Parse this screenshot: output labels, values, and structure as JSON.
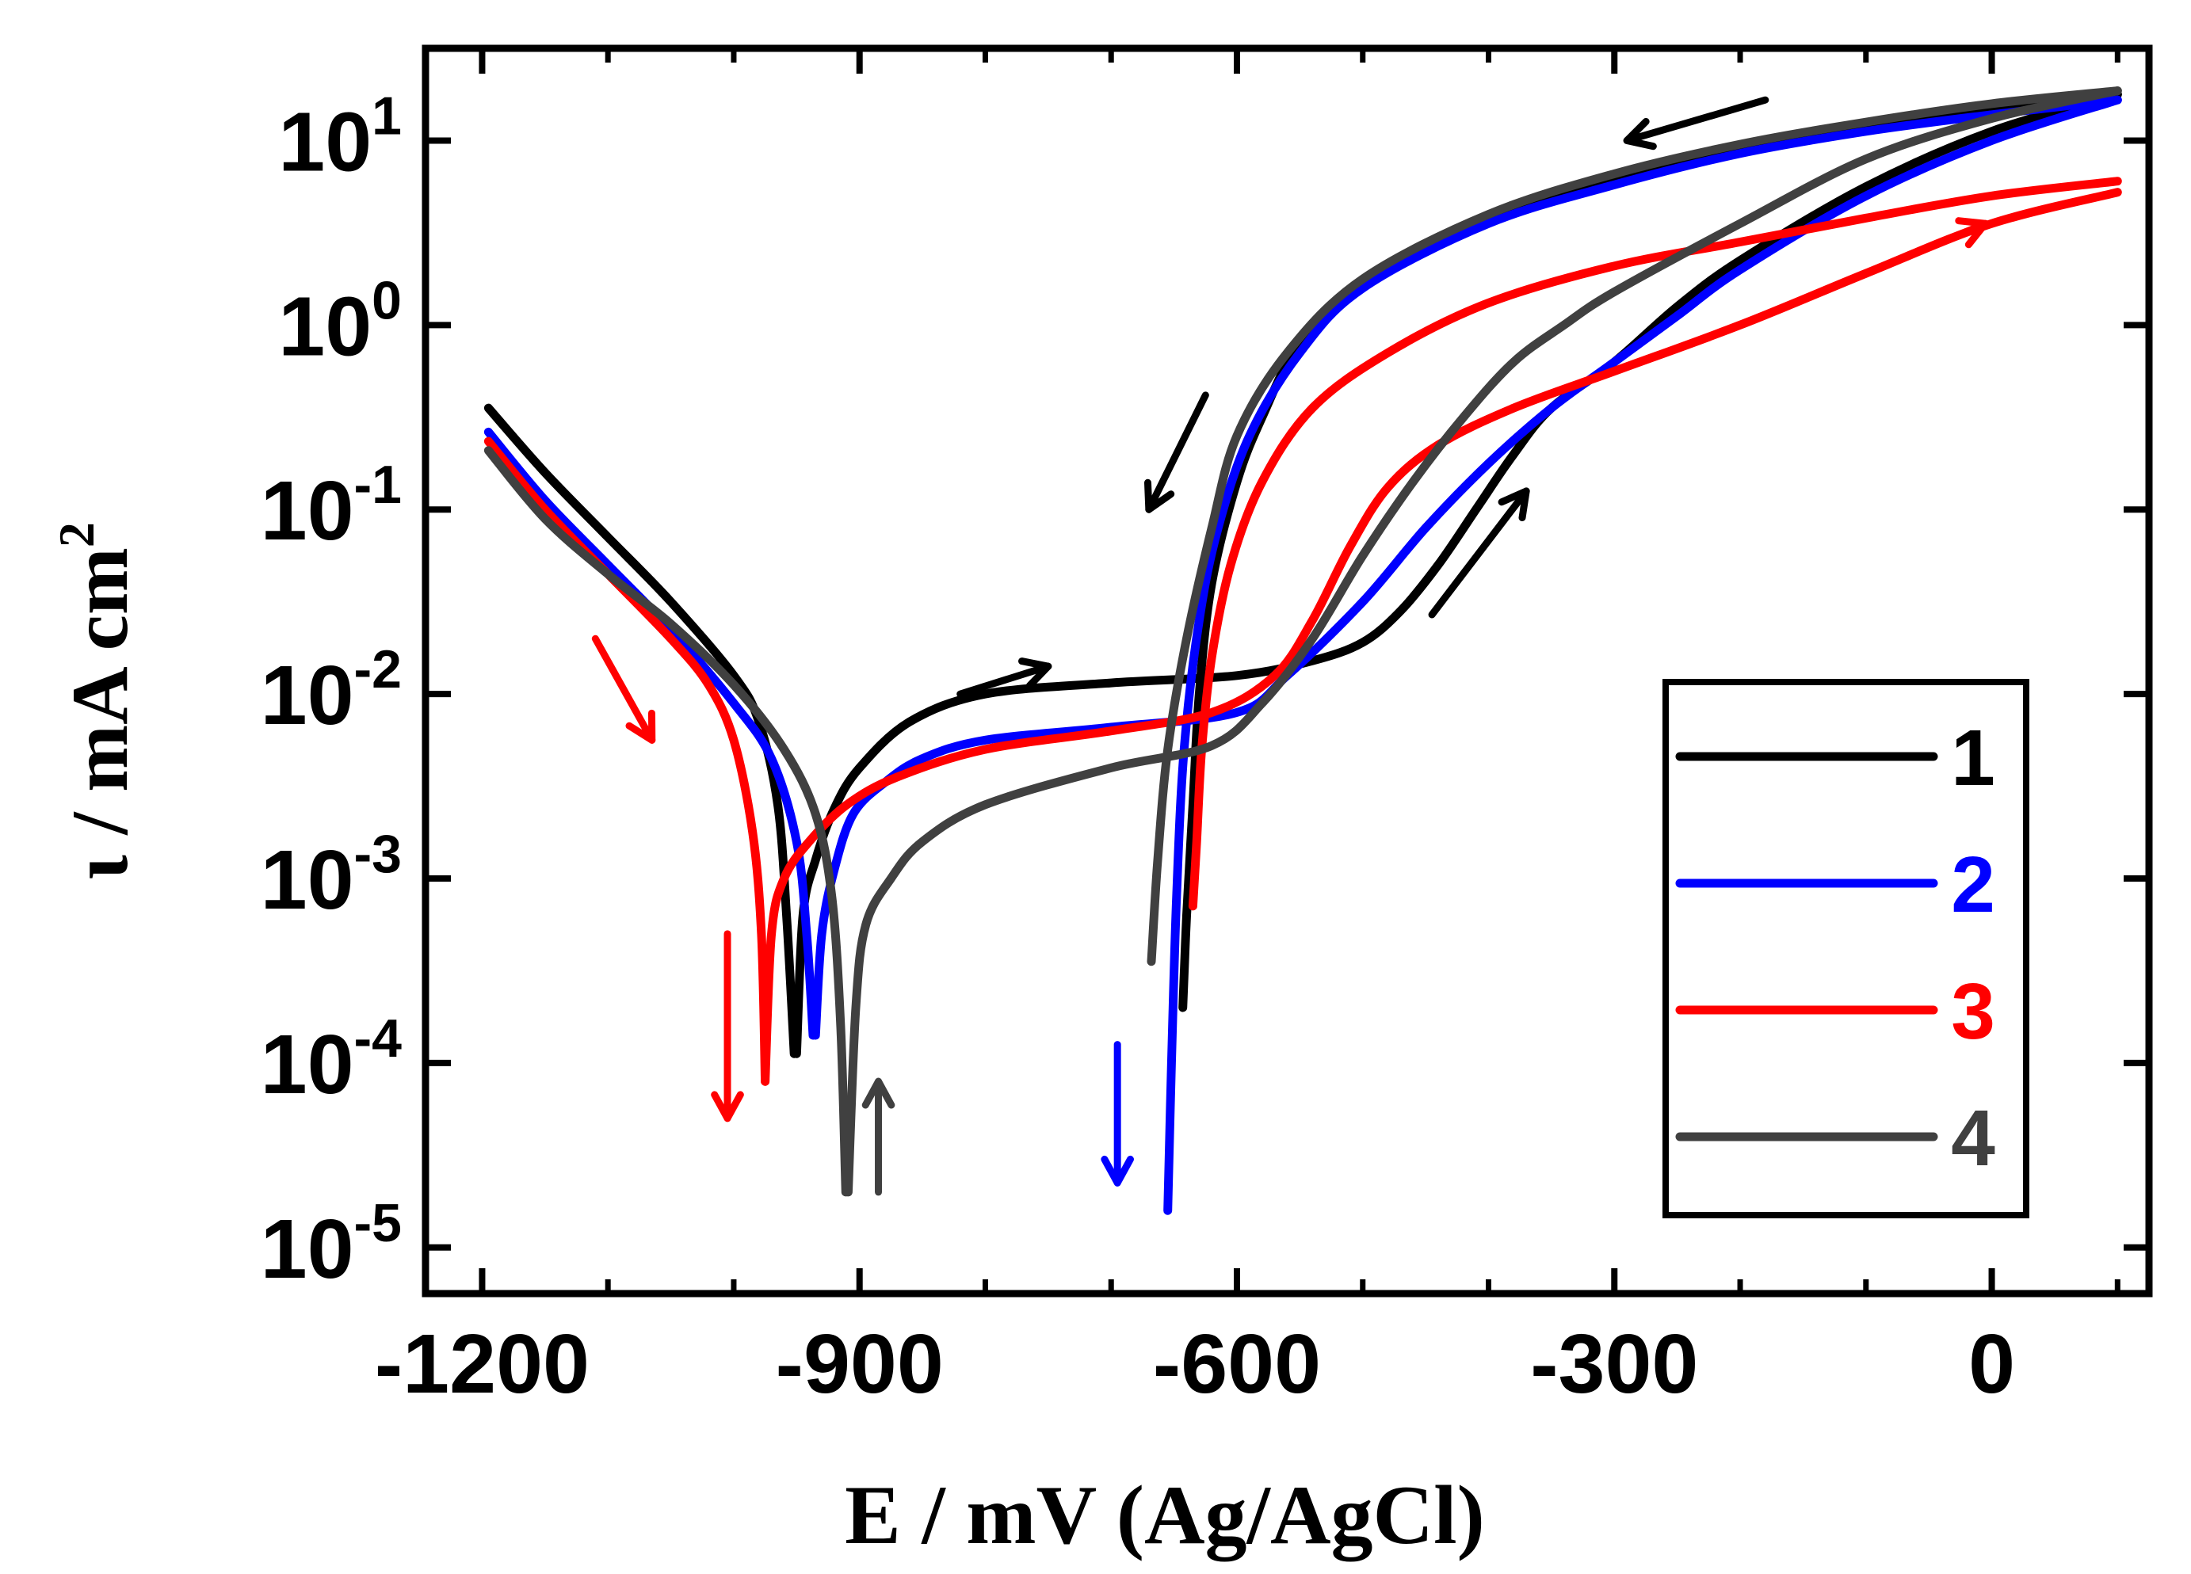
{
  "chart_data": {
    "type": "line",
    "title": "",
    "xlabel": "E / mV (Ag/AgCl)",
    "ylabel": {
      "symbol": "ι",
      "text": " / mA cm",
      "sup": "2"
    },
    "xlim": [
      -1245,
      125
    ],
    "ylim_log10": [
      -5.25,
      1.5
    ],
    "y_scale": "log",
    "grid": false,
    "x_ticks": [
      {
        "value": -1200,
        "label": "-1200"
      },
      {
        "value": -900,
        "label": "-900"
      },
      {
        "value": -600,
        "label": "-600"
      },
      {
        "value": -300,
        "label": "-300"
      },
      {
        "value": 0,
        "label": "0"
      }
    ],
    "y_ticks": [
      {
        "exp": 1,
        "base": "10",
        "sup": "1"
      },
      {
        "exp": 0,
        "base": "10",
        "sup": "0"
      },
      {
        "exp": -1,
        "base": "10",
        "sup": "-1"
      },
      {
        "exp": -2,
        "base": "10",
        "sup": "-2"
      },
      {
        "exp": -3,
        "base": "10",
        "sup": "-3"
      },
      {
        "exp": -4,
        "base": "10",
        "sup": "-4"
      },
      {
        "exp": -5,
        "base": "10",
        "sup": "-5"
      }
    ],
    "legend": {
      "position": "bottom-right",
      "entries": [
        {
          "label": "1",
          "color": "#000000"
        },
        {
          "label": "2",
          "color": "#0000ff"
        },
        {
          "label": "3",
          "color": "#ff0000"
        },
        {
          "label": "4",
          "color": "#404040"
        }
      ]
    },
    "series": [
      {
        "name": "1",
        "color": "#000000",
        "segments": [
          {
            "points": [
              [
                -1195,
                -0.45
              ],
              [
                -1150,
                -0.8
              ],
              [
                -1100,
                -1.15
              ],
              [
                -1050,
                -1.5
              ],
              [
                -1000,
                -1.9
              ],
              [
                -980,
                -2.15
              ],
              [
                -965,
                -2.6
              ],
              [
                -958,
                -3.2
              ],
              [
                -952,
                -3.95
              ]
            ]
          },
          {
            "points": [
              [
                -950,
                -3.95
              ],
              [
                -945,
                -3.2
              ],
              [
                -935,
                -2.9
              ],
              [
                -920,
                -2.62
              ],
              [
                -900,
                -2.4
              ],
              [
                -860,
                -2.15
              ],
              [
                -800,
                -2.0
              ],
              [
                -700,
                -1.94
              ],
              [
                -600,
                -1.9
              ],
              [
                -540,
                -1.82
              ],
              [
                -500,
                -1.72
              ],
              [
                -470,
                -1.55
              ],
              [
                -440,
                -1.3
              ],
              [
                -410,
                -1.0
              ],
              [
                -380,
                -0.7
              ],
              [
                -350,
                -0.45
              ],
              [
                -300,
                -0.2
              ],
              [
                -250,
                0.1
              ],
              [
                -200,
                0.35
              ],
              [
                -100,
                0.75
              ],
              [
                0,
                1.05
              ],
              [
                100,
                1.25
              ]
            ]
          },
          {
            "points": [
              [
                100,
                1.25
              ],
              [
                0,
                1.18
              ],
              [
                -100,
                1.08
              ],
              [
                -200,
                0.96
              ],
              [
                -300,
                0.8
              ],
              [
                -400,
                0.58
              ],
              [
                -500,
                0.22
              ],
              [
                -550,
                -0.1
              ],
              [
                -580,
                -0.5
              ],
              [
                -600,
                -0.85
              ],
              [
                -620,
                -1.4
              ],
              [
                -630,
                -2.0
              ],
              [
                -635,
                -2.6
              ],
              [
                -640,
                -3.2
              ],
              [
                -643,
                -3.7
              ]
            ]
          }
        ]
      },
      {
        "name": "2",
        "color": "#0000ff",
        "segments": [
          {
            "points": [
              [
                -1195,
                -0.58
              ],
              [
                -1150,
                -0.95
              ],
              [
                -1100,
                -1.3
              ],
              [
                -1050,
                -1.65
              ],
              [
                -1000,
                -2.05
              ],
              [
                -970,
                -2.35
              ],
              [
                -950,
                -2.8
              ],
              [
                -942,
                -3.3
              ],
              [
                -937,
                -3.85
              ]
            ]
          },
          {
            "points": [
              [
                -935,
                -3.85
              ],
              [
                -930,
                -3.3
              ],
              [
                -920,
                -2.95
              ],
              [
                -905,
                -2.65
              ],
              [
                -880,
                -2.48
              ],
              [
                -850,
                -2.35
              ],
              [
                -800,
                -2.25
              ],
              [
                -700,
                -2.18
              ],
              [
                -600,
                -2.1
              ],
              [
                -560,
                -1.9
              ],
              [
                -500,
                -1.5
              ],
              [
                -450,
                -1.1
              ],
              [
                -400,
                -0.75
              ],
              [
                -350,
                -0.45
              ],
              [
                -300,
                -0.2
              ],
              [
                -250,
                0.05
              ],
              [
                -200,
                0.3
              ],
              [
                -100,
                0.7
              ],
              [
                0,
                1.0
              ],
              [
                100,
                1.22
              ]
            ]
          },
          {
            "points": [
              [
                100,
                1.22
              ],
              [
                0,
                1.14
              ],
              [
                -100,
                1.05
              ],
              [
                -200,
                0.93
              ],
              [
                -300,
                0.76
              ],
              [
                -400,
                0.55
              ],
              [
                -500,
                0.2
              ],
              [
                -550,
                -0.15
              ],
              [
                -590,
                -0.6
              ],
              [
                -615,
                -1.1
              ],
              [
                -630,
                -1.6
              ],
              [
                -642,
                -2.3
              ],
              [
                -648,
                -3.1
              ],
              [
                -652,
                -4.0
              ],
              [
                -655,
                -4.8
              ]
            ]
          }
        ]
      },
      {
        "name": "3",
        "color": "#ff0000",
        "segments": [
          {
            "points": [
              [
                -1195,
                -0.63
              ],
              [
                -1150,
                -1.0
              ],
              [
                -1100,
                -1.35
              ],
              [
                -1050,
                -1.7
              ],
              [
                -1020,
                -1.95
              ],
              [
                -1000,
                -2.25
              ],
              [
                -985,
                -2.75
              ],
              [
                -978,
                -3.3
              ],
              [
                -975,
                -4.1
              ]
            ]
          },
          {
            "points": [
              [
                -975,
                -4.1
              ],
              [
                -970,
                -3.3
              ],
              [
                -960,
                -3.0
              ],
              [
                -940,
                -2.8
              ],
              [
                -910,
                -2.6
              ],
              [
                -870,
                -2.45
              ],
              [
                -800,
                -2.3
              ],
              [
                -700,
                -2.2
              ],
              [
                -620,
                -2.1
              ],
              [
                -570,
                -1.9
              ],
              [
                -540,
                -1.6
              ],
              [
                -510,
                -1.2
              ],
              [
                -480,
                -0.88
              ],
              [
                -440,
                -0.65
              ],
              [
                -380,
                -0.45
              ],
              [
                -300,
                -0.25
              ],
              [
                -200,
                0.0
              ],
              [
                -100,
                0.28
              ],
              [
                0,
                0.55
              ],
              [
                100,
                0.72
              ]
            ]
          },
          {
            "points": [
              [
                100,
                0.78
              ],
              [
                0,
                0.7
              ],
              [
                -100,
                0.58
              ],
              [
                -200,
                0.45
              ],
              [
                -300,
                0.32
              ],
              [
                -400,
                0.12
              ],
              [
                -480,
                -0.15
              ],
              [
                -540,
                -0.45
              ],
              [
                -580,
                -0.85
              ],
              [
                -605,
                -1.3
              ],
              [
                -620,
                -1.8
              ],
              [
                -628,
                -2.3
              ],
              [
                -632,
                -2.8
              ],
              [
                -635,
                -3.15
              ]
            ]
          }
        ]
      },
      {
        "name": "4",
        "color": "#404040",
        "segments": [
          {
            "points": [
              [
                -1195,
                -0.68
              ],
              [
                -1150,
                -1.05
              ],
              [
                -1100,
                -1.35
              ],
              [
                -1050,
                -1.62
              ],
              [
                -1000,
                -1.95
              ],
              [
                -960,
                -2.3
              ],
              [
                -935,
                -2.65
              ],
              [
                -922,
                -3.1
              ],
              [
                -915,
                -3.8
              ],
              [
                -911,
                -4.7
              ]
            ]
          },
          {
            "points": [
              [
                -909,
                -4.7
              ],
              [
                -903,
                -3.7
              ],
              [
                -895,
                -3.25
              ],
              [
                -875,
                -3.0
              ],
              [
                -850,
                -2.8
              ],
              [
                -800,
                -2.6
              ],
              [
                -700,
                -2.4
              ],
              [
                -620,
                -2.28
              ],
              [
                -580,
                -2.05
              ],
              [
                -540,
                -1.7
              ],
              [
                -500,
                -1.25
              ],
              [
                -460,
                -0.85
              ],
              [
                -420,
                -0.5
              ],
              [
                -380,
                -0.2
              ],
              [
                -340,
                0.0
              ],
              [
                -300,
                0.18
              ],
              [
                -200,
                0.55
              ],
              [
                -100,
                0.9
              ],
              [
                0,
                1.12
              ],
              [
                100,
                1.27
              ]
            ]
          },
          {
            "points": [
              [
                100,
                1.27
              ],
              [
                0,
                1.2
              ],
              [
                -100,
                1.1
              ],
              [
                -200,
                0.98
              ],
              [
                -300,
                0.82
              ],
              [
                -400,
                0.6
              ],
              [
                -500,
                0.25
              ],
              [
                -560,
                -0.15
              ],
              [
                -600,
                -0.6
              ],
              [
                -620,
                -1.1
              ],
              [
                -640,
                -1.7
              ],
              [
                -655,
                -2.3
              ],
              [
                -663,
                -2.9
              ],
              [
                -668,
                -3.45
              ]
            ]
          }
        ]
      }
    ],
    "annotations": [
      {
        "type": "arrow",
        "color": "#000000",
        "from": [
          -820,
          -2.0
        ],
        "to": [
          -750,
          -1.85
        ]
      },
      {
        "type": "arrow",
        "color": "#000000",
        "from": [
          -445,
          -1.57
        ],
        "to": [
          -370,
          -0.9
        ]
      },
      {
        "type": "arrow",
        "color": "#000000",
        "from": [
          -180,
          1.22
        ],
        "to": [
          -290,
          1.0
        ]
      },
      {
        "type": "arrow",
        "color": "#000000",
        "from": [
          -625,
          -0.38
        ],
        "to": [
          -670,
          -1.0
        ]
      },
      {
        "type": "arrow",
        "color": "#ff0000",
        "from": [
          -1110,
          -1.7
        ],
        "to": [
          -1065,
          -2.25
        ]
      },
      {
        "type": "arrow",
        "color": "#ff0000",
        "from": [
          -1005,
          -3.3
        ],
        "to": [
          -1005,
          -4.3
        ]
      },
      {
        "type": "arrow",
        "color": "#ff0000",
        "from": [
          -100,
          0.28
        ],
        "to": [
          -5,
          0.55
        ]
      },
      {
        "type": "arrow",
        "color": "#0000ff",
        "from": [
          -695,
          -3.9
        ],
        "to": [
          -695,
          -4.65
        ]
      },
      {
        "type": "arrow",
        "color": "#404040",
        "from": [
          -885,
          -4.7
        ],
        "to": [
          -885,
          -4.1
        ]
      }
    ]
  }
}
